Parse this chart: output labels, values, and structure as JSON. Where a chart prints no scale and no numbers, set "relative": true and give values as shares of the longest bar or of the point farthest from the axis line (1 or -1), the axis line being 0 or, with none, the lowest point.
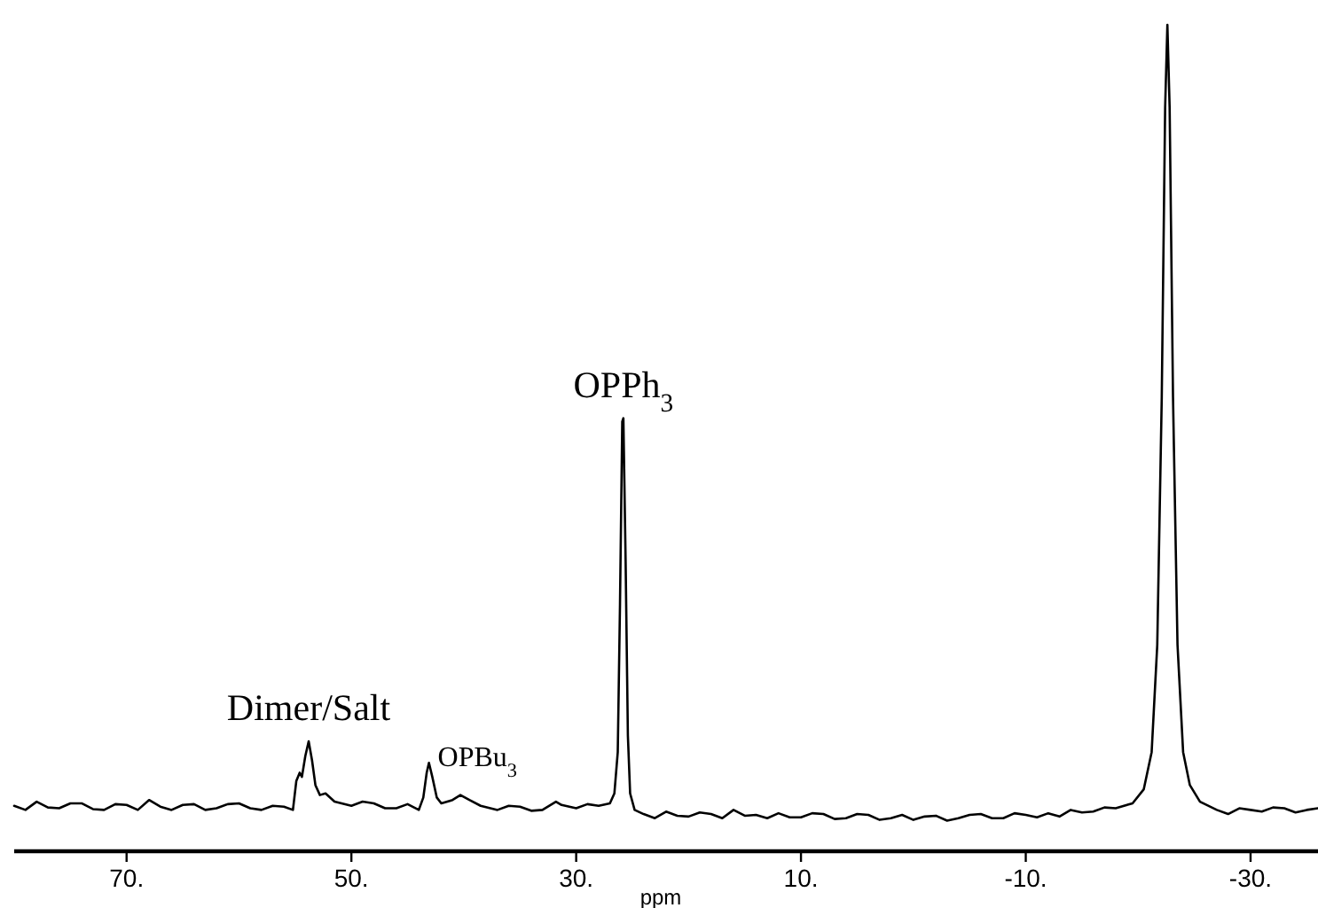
{
  "chart_data": {
    "type": "line",
    "relative": true,
    "xlabel": "ppm",
    "xlim": [
      80,
      -36
    ],
    "xticks": [
      {
        "value": 70,
        "label": "70."
      },
      {
        "value": 50,
        "label": "50."
      },
      {
        "value": 30,
        "label": "30."
      },
      {
        "value": 10,
        "label": "10."
      },
      {
        "value": -10,
        "label": "-10."
      },
      {
        "value": -30,
        "label": "-30."
      }
    ],
    "line_style": "solid",
    "tick_labels": "x",
    "annotations": [
      {
        "text": "Dimer/Salt",
        "x": 53.8,
        "y": 0.133
      },
      {
        "text": "OPBu$_{3}$",
        "x": 43.1,
        "y": 0.107
      },
      {
        "text": "OPPh$_{3}$",
        "x": 25.8,
        "y": 0.524
      }
    ],
    "series": [
      {
        "color": "#000000",
        "x": [
          80,
          79,
          78,
          77,
          76,
          75,
          74,
          73,
          72,
          71,
          70,
          69,
          68,
          67,
          66,
          65,
          64,
          63,
          62,
          61,
          60,
          59,
          58,
          57,
          56,
          55.2,
          54.9,
          54.6,
          54.4,
          54.1,
          53.8,
          53.5,
          53.2,
          52.8,
          52.3,
          51.5,
          50,
          49,
          48,
          47,
          46,
          45,
          44,
          43.6,
          43.3,
          43.1,
          42.8,
          42.4,
          42,
          41,
          40.3,
          39.5,
          38.5,
          37,
          36,
          35,
          34,
          33,
          31.8,
          31.3,
          30,
          29,
          28,
          27,
          26.6,
          26.3,
          26.1,
          25.9,
          25.8,
          25.6,
          25.4,
          25.2,
          24.8,
          24,
          23,
          22,
          21,
          20,
          19,
          18,
          17,
          16,
          15,
          14,
          13,
          12,
          11,
          10,
          9,
          8,
          7,
          6,
          5,
          4,
          3,
          2,
          1,
          0,
          -1,
          -2,
          -3,
          -4,
          -5,
          -6,
          -7,
          -8,
          -9,
          -10,
          -11,
          -12,
          -13,
          -14,
          -15,
          -16,
          -17,
          -18,
          -19.5,
          -20.5,
          -21.2,
          -21.7,
          -22.1,
          -22.4,
          -22.6,
          -22.8,
          -23.1,
          -23.5,
          -24,
          -24.6,
          -25.5,
          -27,
          -28,
          -29,
          -30,
          -31,
          -32,
          -33,
          -34,
          -35,
          -36
        ],
        "values": [
          0.055,
          0.05,
          0.06,
          0.053,
          0.052,
          0.058,
          0.058,
          0.051,
          0.05,
          0.057,
          0.056,
          0.05,
          0.062,
          0.054,
          0.05,
          0.056,
          0.057,
          0.05,
          0.052,
          0.057,
          0.058,
          0.052,
          0.05,
          0.055,
          0.054,
          0.05,
          0.085,
          0.095,
          0.09,
          0.115,
          0.133,
          0.11,
          0.08,
          0.068,
          0.07,
          0.06,
          0.055,
          0.06,
          0.058,
          0.052,
          0.052,
          0.057,
          0.05,
          0.065,
          0.095,
          0.107,
          0.09,
          0.065,
          0.058,
          0.062,
          0.068,
          0.062,
          0.055,
          0.05,
          0.055,
          0.054,
          0.049,
          0.05,
          0.06,
          0.056,
          0.052,
          0.057,
          0.055,
          0.058,
          0.07,
          0.12,
          0.3,
          0.52,
          0.524,
          0.35,
          0.14,
          0.07,
          0.05,
          0.045,
          0.04,
          0.048,
          0.043,
          0.042,
          0.047,
          0.045,
          0.04,
          0.05,
          0.043,
          0.044,
          0.04,
          0.046,
          0.041,
          0.041,
          0.046,
          0.045,
          0.039,
          0.04,
          0.045,
          0.044,
          0.038,
          0.04,
          0.044,
          0.038,
          0.042,
          0.043,
          0.037,
          0.04,
          0.044,
          0.045,
          0.04,
          0.04,
          0.046,
          0.044,
          0.041,
          0.046,
          0.042,
          0.05,
          0.047,
          0.048,
          0.053,
          0.052,
          0.058,
          0.075,
          0.12,
          0.25,
          0.55,
          0.9,
          1,
          0.9,
          0.55,
          0.25,
          0.12,
          0.08,
          0.06,
          0.05,
          0.045,
          0.052,
          0.05,
          0.048,
          0.053,
          0.052,
          0.047,
          0.05,
          0.052
        ]
      }
    ]
  }
}
